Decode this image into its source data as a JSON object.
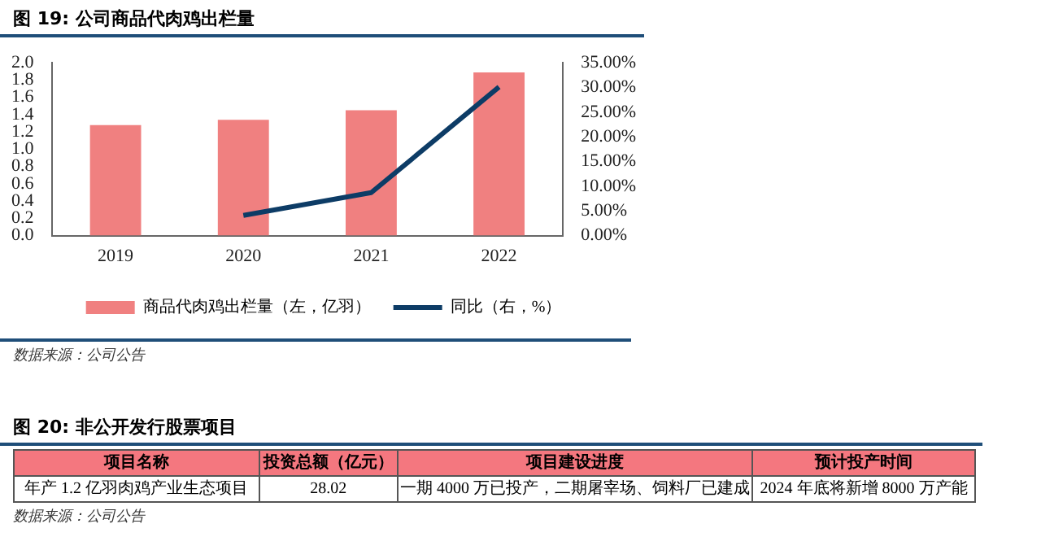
{
  "chart_data": [
    {
      "type": "bar",
      "title": "图 19: 公司商品代肉鸡出栏量",
      "categories": [
        "2019",
        "2020",
        "2021",
        "2022"
      ],
      "series": [
        {
          "name": "商品代肉鸡出栏量（左，亿羽）",
          "color": "#f08080",
          "values": [
            1.28,
            1.34,
            1.45,
            1.89
          ]
        },
        {
          "name": "同比（右，%）",
          "type": "line",
          "axis": "y2",
          "color": "#0d3c66",
          "values": [
            null,
            4.1,
            8.7,
            30.1
          ]
        }
      ],
      "ylim": [
        0,
        2
      ],
      "yticks": [
        {
          "value": 0,
          "label": "0.0"
        },
        {
          "value": 0.2,
          "label": "0.2"
        },
        {
          "value": 0.4,
          "label": "0.4"
        },
        {
          "value": 0.6,
          "label": "0.6"
        },
        {
          "value": 0.8,
          "label": "0.8"
        },
        {
          "value": 1,
          "label": "1.0"
        },
        {
          "value": 1.2,
          "label": "1.2"
        },
        {
          "value": 1.4,
          "label": "1.4"
        },
        {
          "value": 1.6,
          "label": "1.6"
        },
        {
          "value": 1.8,
          "label": "1.8"
        },
        {
          "value": 2,
          "label": "2.0"
        }
      ],
      "y2lim": [
        0,
        35
      ],
      "y2ticks": [
        {
          "value": 0,
          "label": "0.00%"
        },
        {
          "value": 5,
          "label": "5.00%"
        },
        {
          "value": 10,
          "label": "10.00%"
        },
        {
          "value": 15,
          "label": "15.00%"
        },
        {
          "value": 20,
          "label": "20.00%"
        },
        {
          "value": 25,
          "label": "25.00%"
        },
        {
          "value": 30,
          "label": "30.00%"
        },
        {
          "value": 35,
          "label": "35.00%"
        }
      ],
      "legend": "bottom",
      "marker": "none",
      "annotations": [
        "数据来源：公司公告"
      ]
    },
    {
      "type": "other",
      "title": "图 20: 非公开发行股票项目",
      "categories": [
        "项目名称",
        "投资总额（亿元）",
        "项目建设进度",
        "预计投产时间"
      ],
      "annotations": [
        "年产 1.2 亿羽肉鸡产业生态项目",
        "28.02",
        "一期 4000 万已投产，二期屠宰场、饲料厂已建成",
        "2024 年底将新增 8000 万产能",
        "数据来源：公司公告"
      ]
    }
  ]
}
